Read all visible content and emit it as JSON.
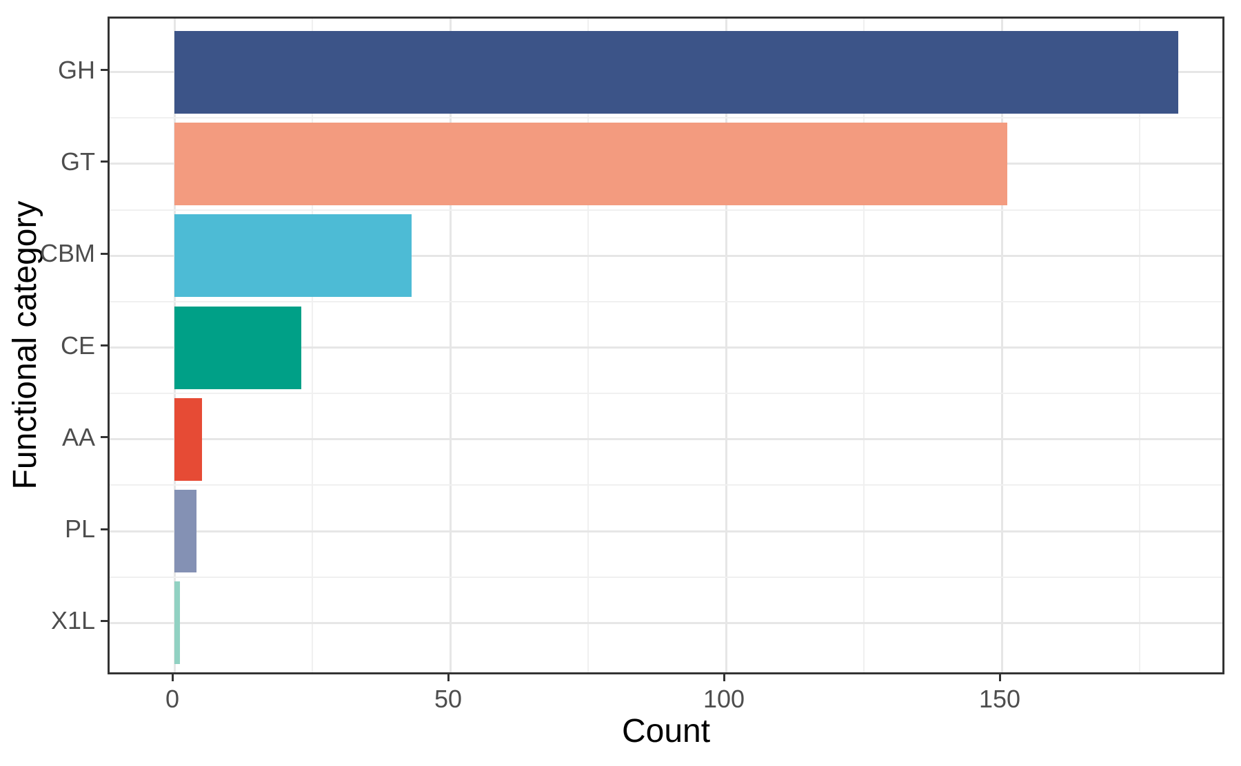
{
  "chart_data": {
    "type": "bar",
    "orientation": "horizontal",
    "title": "",
    "xlabel": "Count",
    "ylabel": "Functional category",
    "categories": [
      "GH",
      "GT",
      "CBM",
      "CE",
      "AA",
      "PL",
      "X1L"
    ],
    "values": [
      182,
      151,
      43,
      23,
      5,
      4,
      1
    ],
    "bar_colors": [
      "#3C5488",
      "#F39B7F",
      "#4DBBD5",
      "#00A087",
      "#E64B35",
      "#8491B4",
      "#91D1C2"
    ],
    "x_ticks_major": [
      0,
      50,
      100,
      150
    ],
    "x_tick_labels": [
      "0",
      "50",
      "100",
      "150"
    ],
    "x_ticks_minor": [
      25,
      75,
      125,
      175
    ],
    "xlim": [
      -11.75,
      190.75
    ],
    "grid": true,
    "legend_position": "none",
    "panel_border": true
  },
  "style": {
    "background": "#FFFFFF",
    "panel_border_color": "#333333",
    "grid_major_color": "#E6E6E6",
    "grid_minor_color": "#F0F0F0",
    "tick_color": "#333333",
    "axis_text_color": "#4D4D4D",
    "axis_title_color": "#000000"
  }
}
